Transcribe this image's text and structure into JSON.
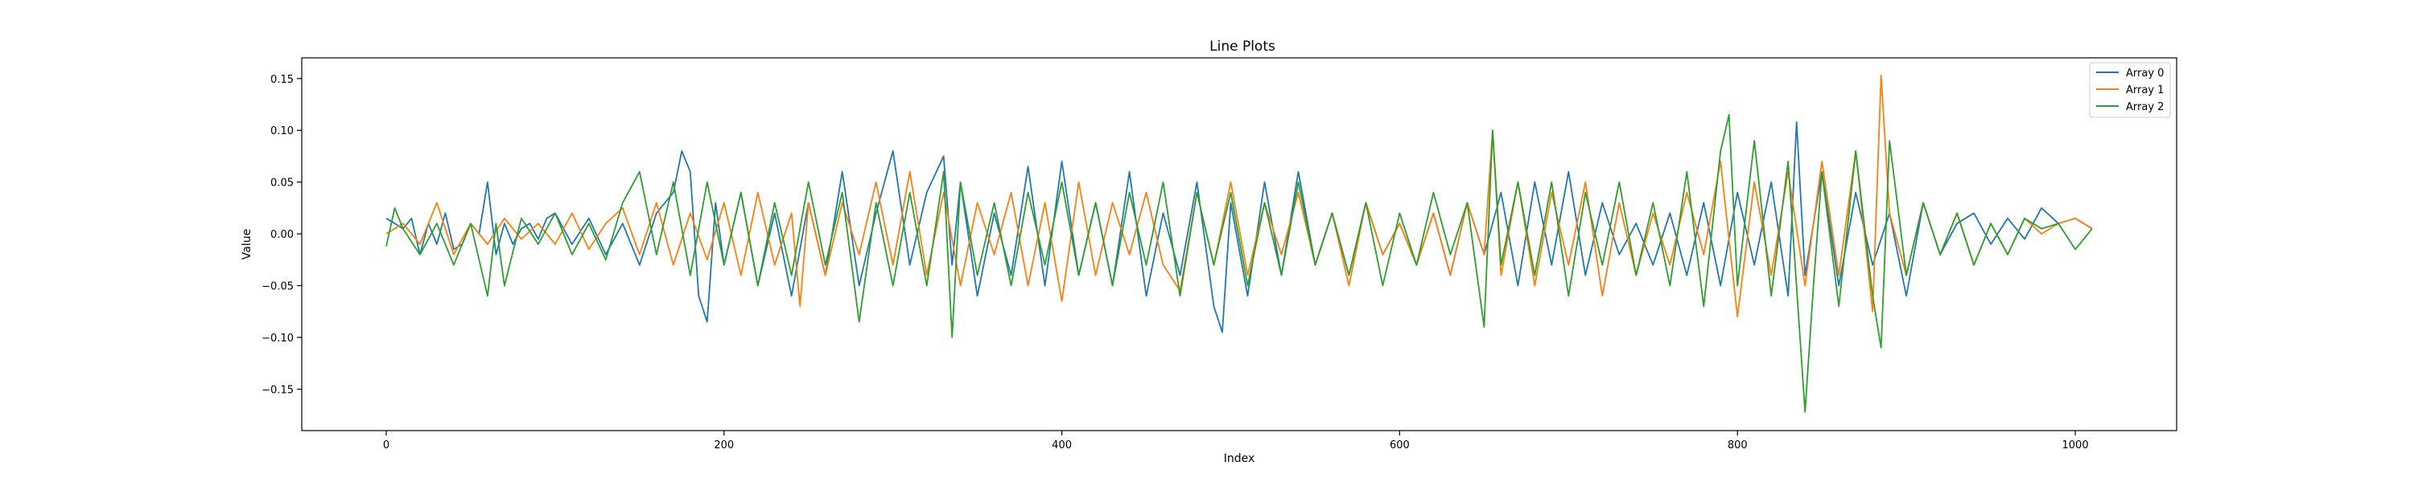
{
  "chart_data": {
    "type": "line",
    "title": "Line Plots",
    "xlabel": "Index",
    "ylabel": "Value",
    "xlim": [
      -50,
      1060
    ],
    "ylim": [
      -0.19,
      0.17
    ],
    "xticks": [
      0,
      200,
      400,
      600,
      800,
      1000
    ],
    "yticks": [
      -0.15,
      -0.1,
      -0.05,
      0.0,
      0.05,
      0.1,
      0.15
    ],
    "ytick_labels": [
      "−0.15",
      "−0.10",
      "−0.05",
      "0.00",
      "0.05",
      "0.10",
      "0.15"
    ],
    "grid": false,
    "legend_position": "top-right",
    "series": [
      {
        "name": "Array 0",
        "color": "#1f77b4",
        "x": [
          0,
          5,
          10,
          15,
          20,
          25,
          30,
          35,
          40,
          45,
          50,
          55,
          60,
          65,
          70,
          75,
          80,
          85,
          90,
          95,
          100,
          110,
          120,
          130,
          140,
          150,
          160,
          170,
          175,
          180,
          185,
          190,
          195,
          200,
          210,
          220,
          230,
          240,
          250,
          260,
          270,
          280,
          290,
          300,
          310,
          320,
          330,
          335,
          340,
          350,
          360,
          370,
          380,
          390,
          400,
          410,
          420,
          430,
          440,
          450,
          460,
          470,
          480,
          490,
          495,
          500,
          510,
          520,
          530,
          540,
          550,
          560,
          570,
          580,
          590,
          600,
          610,
          620,
          630,
          640,
          650,
          660,
          670,
          680,
          690,
          700,
          710,
          720,
          730,
          740,
          750,
          760,
          770,
          780,
          790,
          800,
          810,
          820,
          830,
          835,
          840,
          850,
          860,
          870,
          880,
          890,
          900,
          910,
          920,
          930,
          940,
          950,
          960,
          970,
          980,
          990,
          1000,
          1010
        ],
        "y": [
          0.015,
          0.01,
          0.005,
          0.015,
          -0.02,
          0.01,
          -0.01,
          0.02,
          -0.015,
          -0.01,
          0.01,
          0.0,
          0.05,
          -0.02,
          0.01,
          -0.01,
          0.005,
          0.01,
          -0.005,
          0.015,
          0.02,
          -0.01,
          0.015,
          -0.02,
          0.01,
          -0.03,
          0.02,
          0.04,
          0.08,
          0.06,
          -0.06,
          -0.085,
          0.03,
          -0.03,
          0.04,
          -0.05,
          0.02,
          -0.06,
          0.03,
          -0.04,
          0.06,
          -0.05,
          0.02,
          0.08,
          -0.03,
          0.04,
          0.075,
          -0.03,
          0.05,
          -0.06,
          0.02,
          -0.04,
          0.065,
          -0.05,
          0.07,
          -0.04,
          0.03,
          -0.05,
          0.06,
          -0.06,
          0.02,
          -0.04,
          0.05,
          -0.07,
          -0.095,
          0.03,
          -0.06,
          0.05,
          -0.04,
          0.06,
          -0.03,
          0.02,
          -0.04,
          0.03,
          -0.02,
          0.01,
          -0.03,
          0.02,
          -0.04,
          0.03,
          -0.02,
          0.04,
          -0.05,
          0.05,
          -0.03,
          0.06,
          -0.04,
          0.03,
          -0.02,
          0.01,
          -0.03,
          0.02,
          -0.04,
          0.03,
          -0.05,
          0.04,
          -0.03,
          0.05,
          -0.06,
          0.108,
          -0.04,
          0.06,
          -0.05,
          0.04,
          -0.03,
          0.02,
          -0.06,
          0.03,
          -0.02,
          0.01,
          0.02,
          -0.01,
          0.015,
          -0.005,
          0.025,
          0.01,
          0.015,
          0.005
        ]
      },
      {
        "name": "Array 1",
        "color": "#ff7f0e",
        "x": [
          0,
          10,
          20,
          30,
          40,
          50,
          60,
          70,
          80,
          90,
          100,
          110,
          120,
          130,
          140,
          150,
          160,
          170,
          180,
          190,
          200,
          210,
          220,
          230,
          240,
          245,
          250,
          260,
          270,
          280,
          290,
          300,
          310,
          320,
          330,
          340,
          350,
          360,
          370,
          380,
          390,
          400,
          410,
          420,
          430,
          440,
          450,
          460,
          470,
          480,
          490,
          500,
          510,
          520,
          530,
          540,
          550,
          560,
          570,
          580,
          590,
          600,
          610,
          620,
          630,
          640,
          650,
          655,
          660,
          670,
          680,
          690,
          700,
          710,
          720,
          730,
          740,
          750,
          760,
          770,
          780,
          790,
          800,
          810,
          820,
          830,
          840,
          850,
          860,
          870,
          880,
          885,
          890,
          900,
          910,
          920,
          930,
          940,
          950,
          960,
          970,
          980,
          990,
          1000,
          1010
        ],
        "y": [
          0.0,
          0.01,
          -0.01,
          0.03,
          -0.02,
          0.01,
          -0.01,
          0.015,
          -0.005,
          0.01,
          -0.01,
          0.02,
          -0.015,
          0.01,
          0.025,
          -0.02,
          0.03,
          -0.03,
          0.02,
          -0.025,
          0.03,
          -0.04,
          0.04,
          -0.03,
          0.02,
          -0.07,
          0.03,
          -0.04,
          0.03,
          -0.02,
          0.05,
          -0.03,
          0.06,
          -0.04,
          0.04,
          -0.05,
          0.03,
          -0.02,
          0.04,
          -0.05,
          0.03,
          -0.065,
          0.05,
          -0.04,
          0.03,
          -0.02,
          0.04,
          -0.03,
          -0.055,
          0.04,
          -0.03,
          0.05,
          -0.04,
          0.03,
          -0.02,
          0.04,
          -0.03,
          0.02,
          -0.05,
          0.03,
          -0.02,
          0.01,
          -0.03,
          0.02,
          -0.04,
          0.03,
          -0.02,
          0.1,
          -0.04,
          0.05,
          -0.05,
          0.04,
          -0.03,
          0.05,
          -0.06,
          0.03,
          -0.04,
          0.02,
          -0.03,
          0.04,
          -0.02,
          0.07,
          -0.08,
          0.05,
          -0.04,
          0.06,
          -0.05,
          0.07,
          -0.04,
          0.08,
          -0.075,
          0.153,
          0.02,
          -0.04,
          0.03,
          -0.02,
          0.02,
          -0.03,
          0.01,
          -0.02,
          0.015,
          0.0,
          0.01,
          0.015,
          0.005
        ]
      },
      {
        "name": "Array 2",
        "color": "#2ca02c",
        "x": [
          0,
          5,
          10,
          20,
          30,
          40,
          50,
          60,
          65,
          70,
          80,
          90,
          100,
          110,
          120,
          130,
          140,
          150,
          160,
          170,
          180,
          190,
          200,
          210,
          220,
          230,
          240,
          250,
          260,
          270,
          280,
          290,
          300,
          310,
          320,
          330,
          335,
          340,
          350,
          360,
          370,
          380,
          390,
          400,
          410,
          420,
          430,
          440,
          450,
          460,
          470,
          480,
          490,
          500,
          510,
          520,
          530,
          540,
          550,
          560,
          570,
          580,
          590,
          600,
          610,
          620,
          630,
          640,
          650,
          655,
          660,
          670,
          680,
          690,
          700,
          710,
          720,
          730,
          740,
          750,
          760,
          770,
          780,
          790,
          795,
          800,
          810,
          820,
          830,
          840,
          845,
          850,
          860,
          870,
          880,
          885,
          890,
          900,
          910,
          920,
          930,
          940,
          950,
          960,
          970,
          980,
          990,
          1000,
          1010
        ],
        "y": [
          -0.012,
          0.025,
          0.005,
          -0.02,
          0.01,
          -0.03,
          0.01,
          -0.06,
          0.01,
          -0.05,
          0.015,
          -0.01,
          0.02,
          -0.02,
          0.01,
          -0.025,
          0.03,
          0.06,
          -0.02,
          0.05,
          -0.04,
          0.05,
          -0.03,
          0.04,
          -0.05,
          0.03,
          -0.04,
          0.05,
          -0.03,
          0.04,
          -0.085,
          0.03,
          -0.05,
          0.04,
          -0.05,
          0.06,
          -0.1,
          0.05,
          -0.04,
          0.03,
          -0.05,
          0.04,
          -0.03,
          0.05,
          -0.04,
          0.03,
          -0.05,
          0.04,
          -0.03,
          0.05,
          -0.06,
          0.04,
          -0.03,
          0.04,
          -0.05,
          0.03,
          -0.04,
          0.05,
          -0.03,
          0.02,
          -0.04,
          0.03,
          -0.05,
          0.02,
          -0.03,
          0.04,
          -0.02,
          0.03,
          -0.09,
          0.1,
          -0.03,
          0.05,
          -0.04,
          0.05,
          -0.06,
          0.04,
          -0.03,
          0.05,
          -0.04,
          0.03,
          -0.05,
          0.06,
          -0.07,
          0.08,
          0.115,
          -0.05,
          0.09,
          -0.06,
          0.07,
          -0.172,
          -0.05,
          0.06,
          -0.07,
          0.08,
          -0.06,
          -0.11,
          0.09,
          -0.04,
          0.03,
          -0.02,
          0.02,
          -0.03,
          0.01,
          -0.02,
          0.015,
          0.005,
          0.01,
          -0.015,
          0.005
        ]
      }
    ]
  }
}
